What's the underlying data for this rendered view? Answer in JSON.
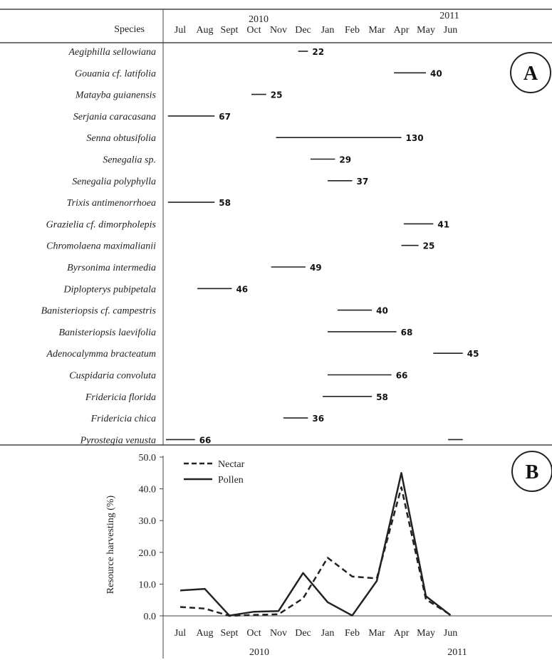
{
  "chart_data": [
    {
      "type": "gantt",
      "panel": "A",
      "species_header": "Species",
      "year_labels": [
        "2010",
        "2011"
      ],
      "months": [
        "Jul",
        "Aug",
        "Sept",
        "Oct",
        "Nov",
        "Dec",
        "Jan",
        "Feb",
        "Mar",
        "Apr",
        "May",
        "Jun"
      ],
      "rows": [
        {
          "species": "Aegiphilla sellowiana",
          "segments": [
            [
              5.3,
              5.7
            ]
          ],
          "count": "22"
        },
        {
          "species": "Gouania cf. latifolia",
          "segments": [
            [
              9.2,
              10.5
            ]
          ],
          "count": "40"
        },
        {
          "species": "Matayba guianensis",
          "segments": [
            [
              3.4,
              4.0
            ]
          ],
          "count": "25"
        },
        {
          "species": "Serjania caracasana",
          "segments": [
            [
              0.0,
              1.9
            ]
          ],
          "count": "67"
        },
        {
          "species": "Senna obtusifolia",
          "segments": [
            [
              4.4,
              9.5
            ]
          ],
          "count": "130"
        },
        {
          "species": "Senegalia sp.",
          "segments": [
            [
              5.8,
              6.8
            ]
          ],
          "count": "29"
        },
        {
          "species": "Senegalia polyphylla",
          "segments": [
            [
              6.5,
              7.5
            ]
          ],
          "count": "37"
        },
        {
          "species": "Trixis antimenorrhoea",
          "segments": [
            [
              0.0,
              1.9
            ]
          ],
          "count": "58"
        },
        {
          "species": "Grazielia cf. dimorpholepis",
          "segments": [
            [
              9.6,
              10.8
            ]
          ],
          "count": "41"
        },
        {
          "species": "Chromolaena maximalianii",
          "segments": [
            [
              9.5,
              10.2
            ]
          ],
          "count": "25"
        },
        {
          "species": "Byrsonima intermedia",
          "segments": [
            [
              4.2,
              5.6
            ]
          ],
          "count": "49"
        },
        {
          "species": "Diplopterys pubipetala",
          "segments": [
            [
              1.2,
              2.6
            ]
          ],
          "count": "46"
        },
        {
          "species": "Banisteriopsis cf. campestris",
          "segments": [
            [
              6.9,
              8.3
            ]
          ],
          "count": "40"
        },
        {
          "species": "Banisteriopsis laevifolia",
          "segments": [
            [
              6.5,
              9.3
            ]
          ],
          "count": "68"
        },
        {
          "species": "Adenocalymma bracteatum",
          "segments": [
            [
              10.8,
              12.0
            ]
          ],
          "count": "45"
        },
        {
          "species": "Cuspidaria convoluta",
          "segments": [
            [
              6.5,
              9.1
            ]
          ],
          "count": "66"
        },
        {
          "species": "Fridericia florida",
          "segments": [
            [
              6.3,
              8.3
            ]
          ],
          "count": "58"
        },
        {
          "species": "Fridericia chica",
          "segments": [
            [
              4.7,
              5.7
            ]
          ],
          "count": "36"
        },
        {
          "species": "Pyrostegia venusta",
          "segments": [
            [
              -0.2,
              1.1
            ],
            [
              11.4,
              12.0
            ]
          ],
          "count": "66"
        }
      ]
    },
    {
      "type": "line",
      "panel": "B",
      "categories": [
        "Jul",
        "Aug",
        "Sept",
        "Oct",
        "Nov",
        "Dec",
        "Jan",
        "Feb",
        "Mar",
        "Apr",
        "May",
        "Jun"
      ],
      "year_labels": [
        "2010",
        "2011"
      ],
      "ylabel": "Resource harvesting (%)",
      "ylim": [
        0,
        50
      ],
      "yticks": [
        "0.0",
        "10.0",
        "20.0",
        "30.0",
        "40.0",
        "50.0"
      ],
      "legend_position": "top-left",
      "series": [
        {
          "name": "Nectar",
          "style": "dashed",
          "values": [
            2.8,
            2.3,
            0.0,
            0.3,
            0.5,
            5.5,
            18.3,
            12.4,
            11.8,
            40.5,
            5.2,
            0.3
          ]
        },
        {
          "name": "Pollen",
          "style": "solid",
          "values": [
            8.0,
            8.5,
            0.1,
            1.3,
            1.5,
            13.5,
            4.3,
            0.1,
            11.0,
            45.0,
            6.2,
            0.2
          ]
        }
      ]
    }
  ]
}
